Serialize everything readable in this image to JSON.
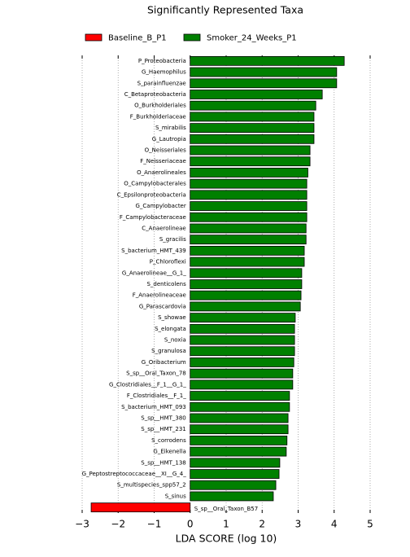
{
  "chart_data": {
    "type": "barh",
    "title": "Significantly Represented Taxa",
    "xlabel": "LDA SCORE (log 10)",
    "categories": [
      "P_Proteobacteria",
      "G_Haemophilus",
      "S_parainfluenzae",
      "C_Betaproteobacteria",
      "O_Burkholderiales",
      "F_Burkholderiaceae",
      "S_mirabilis",
      "G_Lautropia",
      "O_Neisseriales",
      "F_Neisseriaceae",
      "O_Anaerolineales",
      "O_Campylobacterales",
      "C_Epsilonproteobacteria",
      "G_Campylobacter",
      "F_Campylobacteraceae",
      "C_Anaerolineae",
      "S_gracilis",
      "S_bacterium_HMT_439",
      "P_Chloroflexi",
      "G_Anaerolineae__G_1_",
      "S_denticolens",
      "F_Anaerolineaceae",
      "G_Parascardovia",
      "S_showae",
      "S_elongata",
      "S_noxia",
      "S_granulosa",
      "G_Oribacterium",
      "S_sp__Oral_Taxon_78",
      "G_Clostridiales__F_1__G_1_",
      "F_Clostridiales__F_1_",
      "S_bacterium_HMT_093",
      "S_sp__HMT_380",
      "S_sp__HMT_231",
      "S_corrodens",
      "G_Eikenella",
      "S_sp__HMT_138",
      "G_Peptostreptococcaceae__XI__G_4_",
      "S_multispecies_spp57_2",
      "S_sinus",
      "S_sp__Oral_Taxon_B57"
    ],
    "series": [
      {
        "name": "Baseline_B_P1",
        "color": "#ff0000",
        "values": [
          null,
          null,
          null,
          null,
          null,
          null,
          null,
          null,
          null,
          null,
          null,
          null,
          null,
          null,
          null,
          null,
          null,
          null,
          null,
          null,
          null,
          null,
          null,
          null,
          null,
          null,
          null,
          null,
          null,
          null,
          null,
          null,
          null,
          null,
          null,
          null,
          null,
          null,
          null,
          null,
          -2.75
        ]
      },
      {
        "name": "Smoker_24_Weeks_P1",
        "color": "#008000",
        "values": [
          4.28,
          4.07,
          4.07,
          3.67,
          3.49,
          3.44,
          3.44,
          3.44,
          3.33,
          3.33,
          3.27,
          3.24,
          3.24,
          3.24,
          3.24,
          3.22,
          3.22,
          3.17,
          3.17,
          3.1,
          3.1,
          3.08,
          3.06,
          2.92,
          2.9,
          2.9,
          2.9,
          2.88,
          2.85,
          2.85,
          2.76,
          2.76,
          2.72,
          2.72,
          2.69,
          2.67,
          2.49,
          2.47,
          2.38,
          2.31,
          null
        ]
      }
    ],
    "xlim": [
      -3,
      5
    ],
    "xticks": [
      {
        "value": -3,
        "label": "−3"
      },
      {
        "value": -2,
        "label": "−2"
      },
      {
        "value": -1,
        "label": "−1"
      },
      0,
      1,
      2,
      3,
      4,
      5
    ],
    "grid": true
  }
}
